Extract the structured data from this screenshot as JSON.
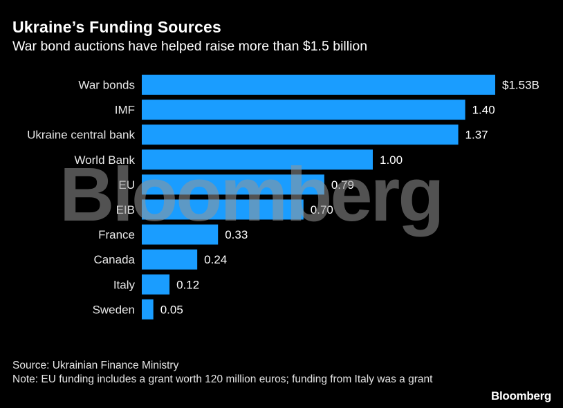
{
  "header": {
    "title": "Ukraine’s Funding Sources",
    "subtitle": "War bond auctions have helped raise more than $1.5 billion"
  },
  "footer": {
    "source": "Source: Ukrainian Finance Ministry",
    "note": "Note: EU funding includes a grant worth 120 million euros; funding from Italy was a grant",
    "brand": "Bloomberg"
  },
  "watermark": "Bloomberg",
  "colors": {
    "bar": "#1a9dff",
    "background": "#000000",
    "text": "#ffffff"
  },
  "chart_data": {
    "type": "bar",
    "orientation": "horizontal",
    "title": "Ukraine’s Funding Sources",
    "subtitle": "War bond auctions have helped raise more than $1.5 billion",
    "unit": "billion USD",
    "categories": [
      "War bonds",
      "IMF",
      "Ukraine central bank",
      "World Bank",
      "EU",
      "EIB",
      "France",
      "Canada",
      "Italy",
      "Sweden"
    ],
    "values": [
      1.53,
      1.4,
      1.37,
      1.0,
      0.79,
      0.7,
      0.33,
      0.24,
      0.12,
      0.05
    ],
    "data_labels": [
      "$1.53B",
      "1.40",
      "1.37",
      "1.00",
      "0.79",
      "0.70",
      "0.33",
      "0.24",
      "0.12",
      "0.05"
    ],
    "xlim": [
      0,
      1.53
    ],
    "grid": false,
    "legend": "none"
  }
}
